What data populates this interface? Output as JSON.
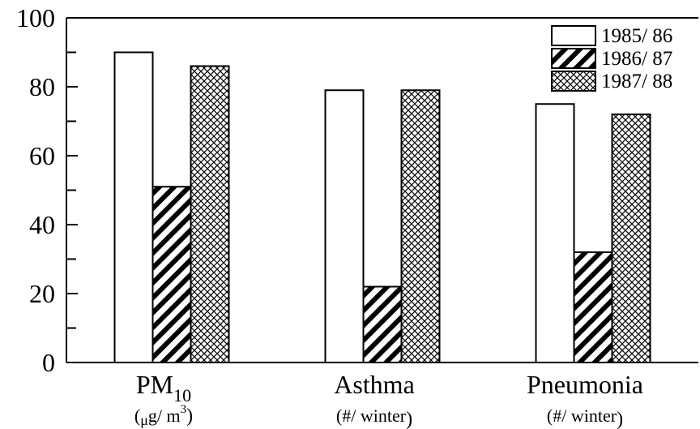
{
  "chart_data": {
    "type": "bar",
    "categories": [
      "PM10",
      "Asthma",
      "Pneumonia"
    ],
    "category_labels": [
      {
        "main": "PM",
        "sub": "10",
        "unit_pre": "(",
        "unit_mu": "μ",
        "unit_post": "g/ m",
        "unit_sup": "3",
        "unit_close": ")"
      },
      {
        "main": "Asthma",
        "sub": "",
        "unit_pre": "(#/ winter",
        "unit_mu": "",
        "unit_post": "",
        "unit_sup": "",
        "unit_close": ")"
      },
      {
        "main": "Pneumonia",
        "sub": "",
        "unit_pre": "(#/ winter",
        "unit_mu": "",
        "unit_post": "",
        "unit_sup": "",
        "unit_close": ")"
      }
    ],
    "series": [
      {
        "name": "1985/ 86",
        "pattern": "empty",
        "values": [
          90,
          79,
          75
        ]
      },
      {
        "name": "1986/ 87",
        "pattern": "diagonal",
        "values": [
          51,
          22,
          32
        ]
      },
      {
        "name": "1987/ 88",
        "pattern": "crosshatch",
        "values": [
          86,
          79,
          72
        ]
      }
    ],
    "yticks": [
      "0",
      "20",
      "40",
      "60",
      "80",
      "100"
    ],
    "ylim": [
      0,
      100
    ],
    "grid": false,
    "legend_position": "top-right",
    "title": "",
    "xlabel": "",
    "ylabel": ""
  }
}
